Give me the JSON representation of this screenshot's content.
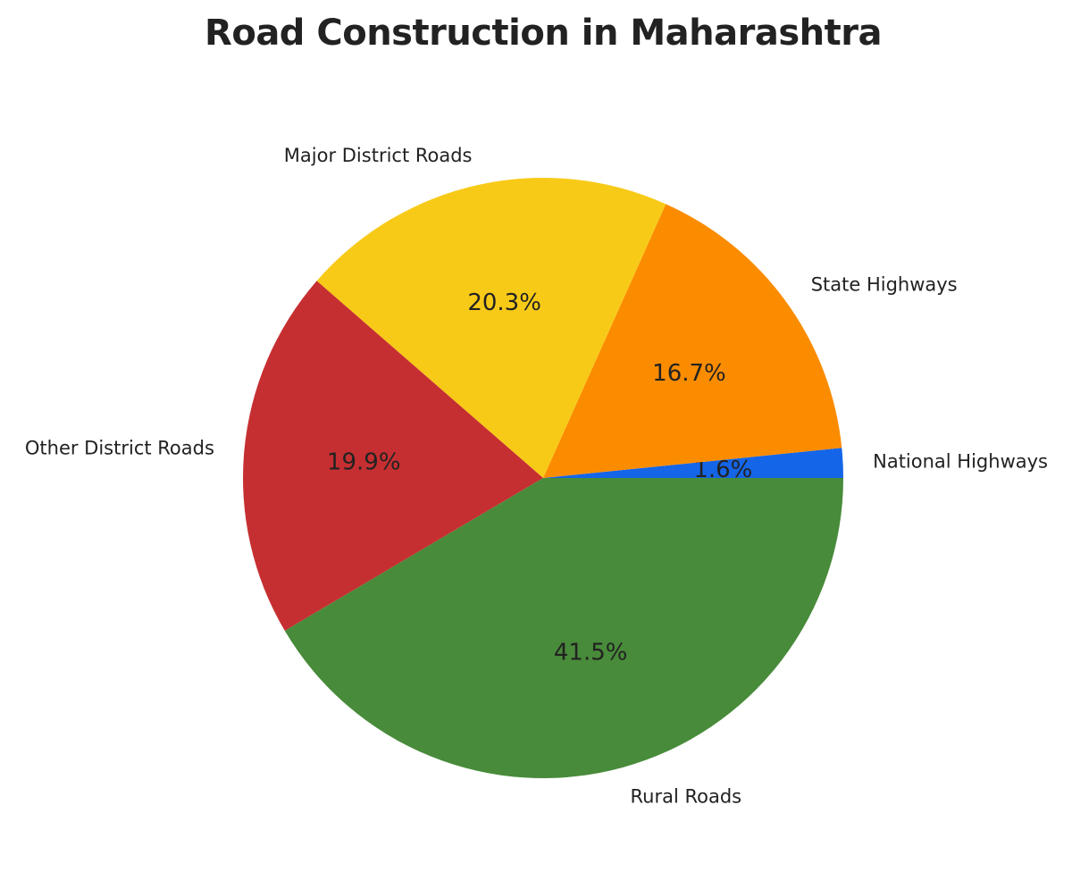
{
  "chart_data": {
    "type": "pie",
    "title": "Road Construction in Maharashtra",
    "start_angle": 0,
    "direction": "counterclockwise",
    "slices": [
      {
        "label": "National Highways",
        "value": 1.6,
        "pct_label": "1.6%",
        "color": "#1565e8"
      },
      {
        "label": "State Highways",
        "value": 16.7,
        "pct_label": "16.7%",
        "color": "#fb8c00"
      },
      {
        "label": "Major District Roads",
        "value": 20.3,
        "pct_label": "20.3%",
        "color": "#f8ca18"
      },
      {
        "label": "Other District Roads",
        "value": 19.9,
        "pct_label": "19.9%",
        "color": "#c62f31"
      },
      {
        "label": "Rural Roads",
        "value": 41.5,
        "pct_label": "41.5%",
        "color": "#488b3a"
      }
    ],
    "legend": "none",
    "labels_outside": true,
    "percent_labels_inside": true
  }
}
